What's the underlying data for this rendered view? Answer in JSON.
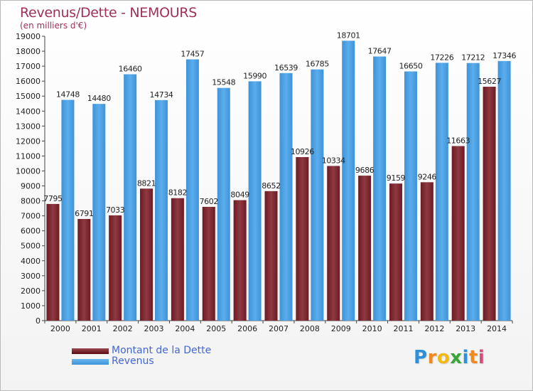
{
  "header": {
    "title": "Revenus/Dette - NEMOURS",
    "subtitle": "(en milliers d'€)"
  },
  "chart_data": {
    "type": "bar",
    "title": "Revenus/Dette - NEMOURS",
    "subtitle": "(en milliers d'€)",
    "categories": [
      "2000",
      "2001",
      "2002",
      "2003",
      "2004",
      "2005",
      "2006",
      "2007",
      "2008",
      "2009",
      "2010",
      "2011",
      "2012",
      "2013",
      "2014"
    ],
    "series": [
      {
        "name": "Montant de la Dette",
        "values": [
          7795,
          6791,
          7033,
          8821,
          8182,
          7602,
          8049,
          8652,
          10926,
          10334,
          9686,
          9159,
          9246,
          11663,
          15627
        ],
        "labels": [
          "7795",
          "6791",
          "7033",
          "8821",
          "8182",
          "7602",
          "8049",
          "8652",
          "10926",
          "10334",
          "9686",
          "9159",
          "9246",
          "11663",
          "15627"
        ],
        "color": "#7a1f2a"
      },
      {
        "name": "Revenus",
        "values": [
          14748,
          14480,
          16460,
          14734,
          17457,
          15548,
          15990,
          16539,
          16785,
          18701,
          17647,
          16650,
          17226,
          17212,
          17346
        ],
        "labels": [
          "14748",
          "14480",
          "16460",
          "14734",
          "17457",
          "15548",
          "15990",
          "16539",
          "16785",
          "18701",
          "17647",
          "16650",
          "17226",
          "17212",
          "17346"
        ],
        "color": "#4da3e6"
      }
    ],
    "xlabel": "",
    "ylabel": "",
    "ylim": [
      0,
      19000
    ],
    "yticks": [
      0,
      1000,
      2000,
      3000,
      4000,
      5000,
      6000,
      7000,
      8000,
      9000,
      10000,
      11000,
      12000,
      13000,
      14000,
      15000,
      16000,
      17000,
      18000,
      19000
    ],
    "grid": false,
    "legend_position": "bottom-left"
  },
  "legend": {
    "items": [
      {
        "label": "Montant de la Dette",
        "color": "#6b0f1a"
      },
      {
        "label": "Revenus",
        "color": "#4da3e6"
      }
    ]
  },
  "logo": {
    "letters": [
      "P",
      "r",
      "o",
      "x",
      "i",
      "t",
      "i"
    ],
    "colors": [
      "#2f8fd8",
      "#f08a1c",
      "#f2b90f",
      "#3aa63a",
      "#2f8fd8",
      "#f08a1c",
      "#d84c7a"
    ]
  }
}
